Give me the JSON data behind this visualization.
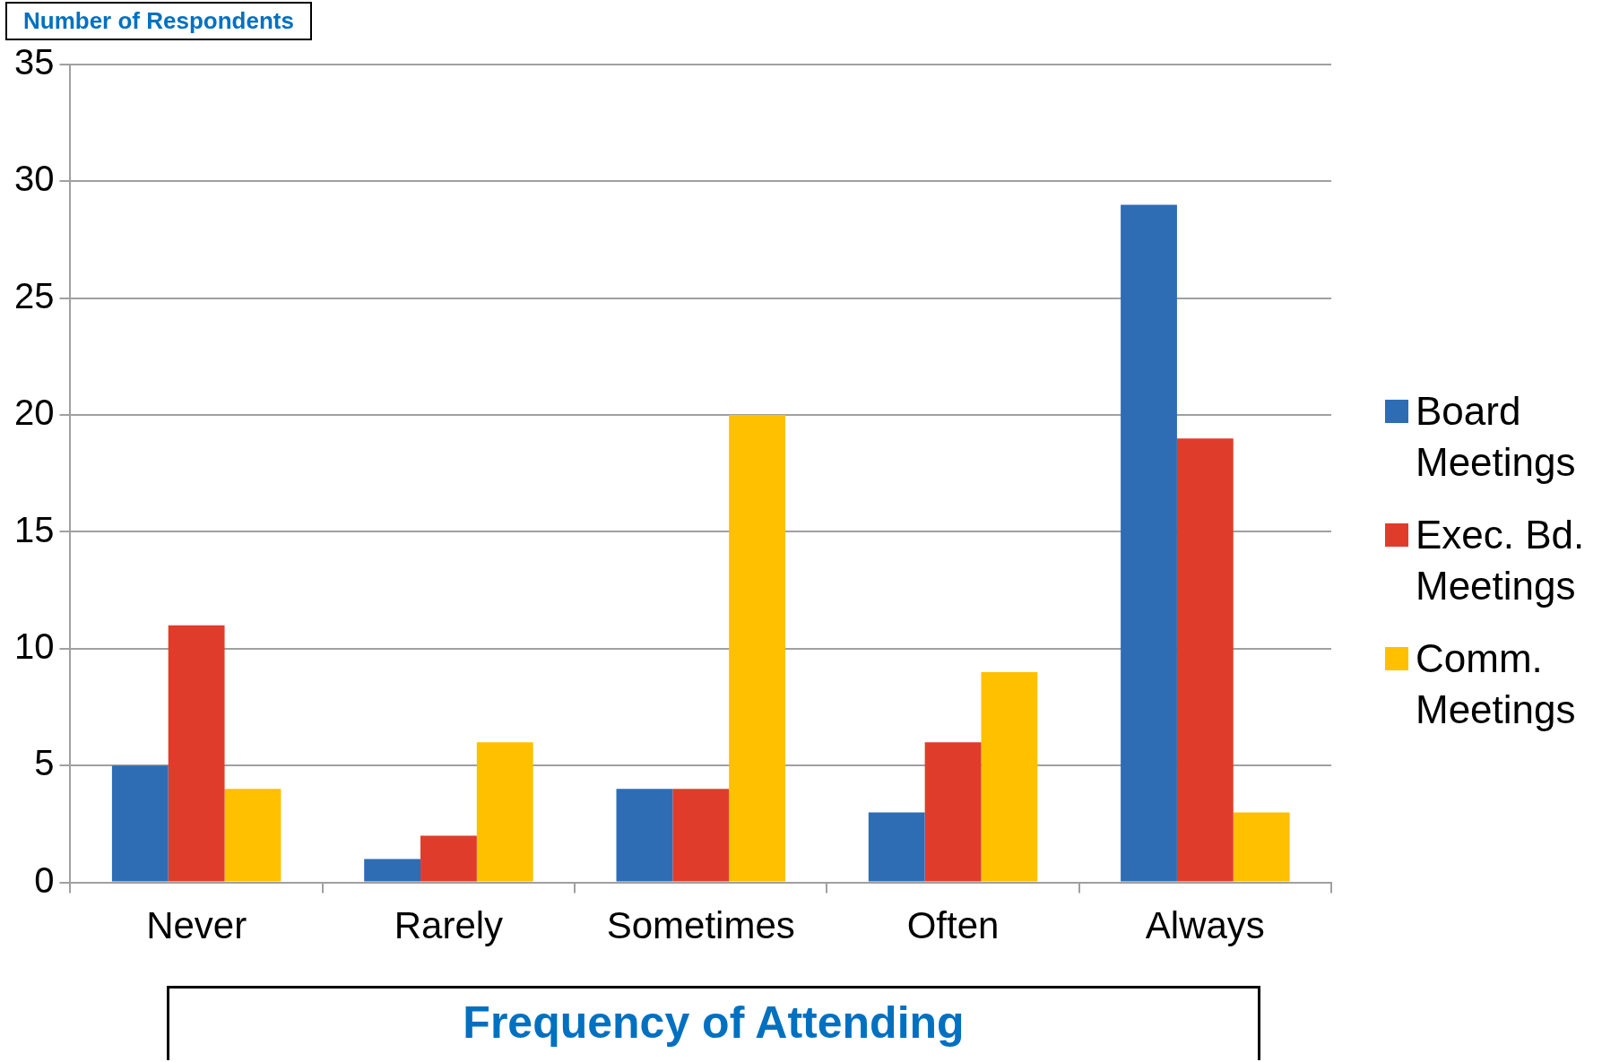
{
  "chart_data": {
    "type": "bar",
    "xlabel": "Frequency of Attending",
    "ylabel": "Number of Respondents",
    "categories": [
      "Never",
      "Rarely",
      "Sometimes",
      "Often",
      "Always"
    ],
    "series": [
      {
        "name": "Board Meetings",
        "color": "#2e6db4",
        "values": [
          5,
          1,
          4,
          3,
          29
        ]
      },
      {
        "name": "Exec. Bd. Meetings",
        "color": "#e03c2b",
        "values": [
          11,
          2,
          4,
          6,
          19
        ]
      },
      {
        "name": "Comm. Meetings",
        "color": "#ffc000",
        "values": [
          4,
          6,
          20,
          9,
          3
        ]
      }
    ],
    "ylim": [
      0,
      35
    ],
    "yticks": [
      0,
      5,
      10,
      15,
      20,
      25,
      30,
      35
    ],
    "grid": "y",
    "legend": "right"
  }
}
